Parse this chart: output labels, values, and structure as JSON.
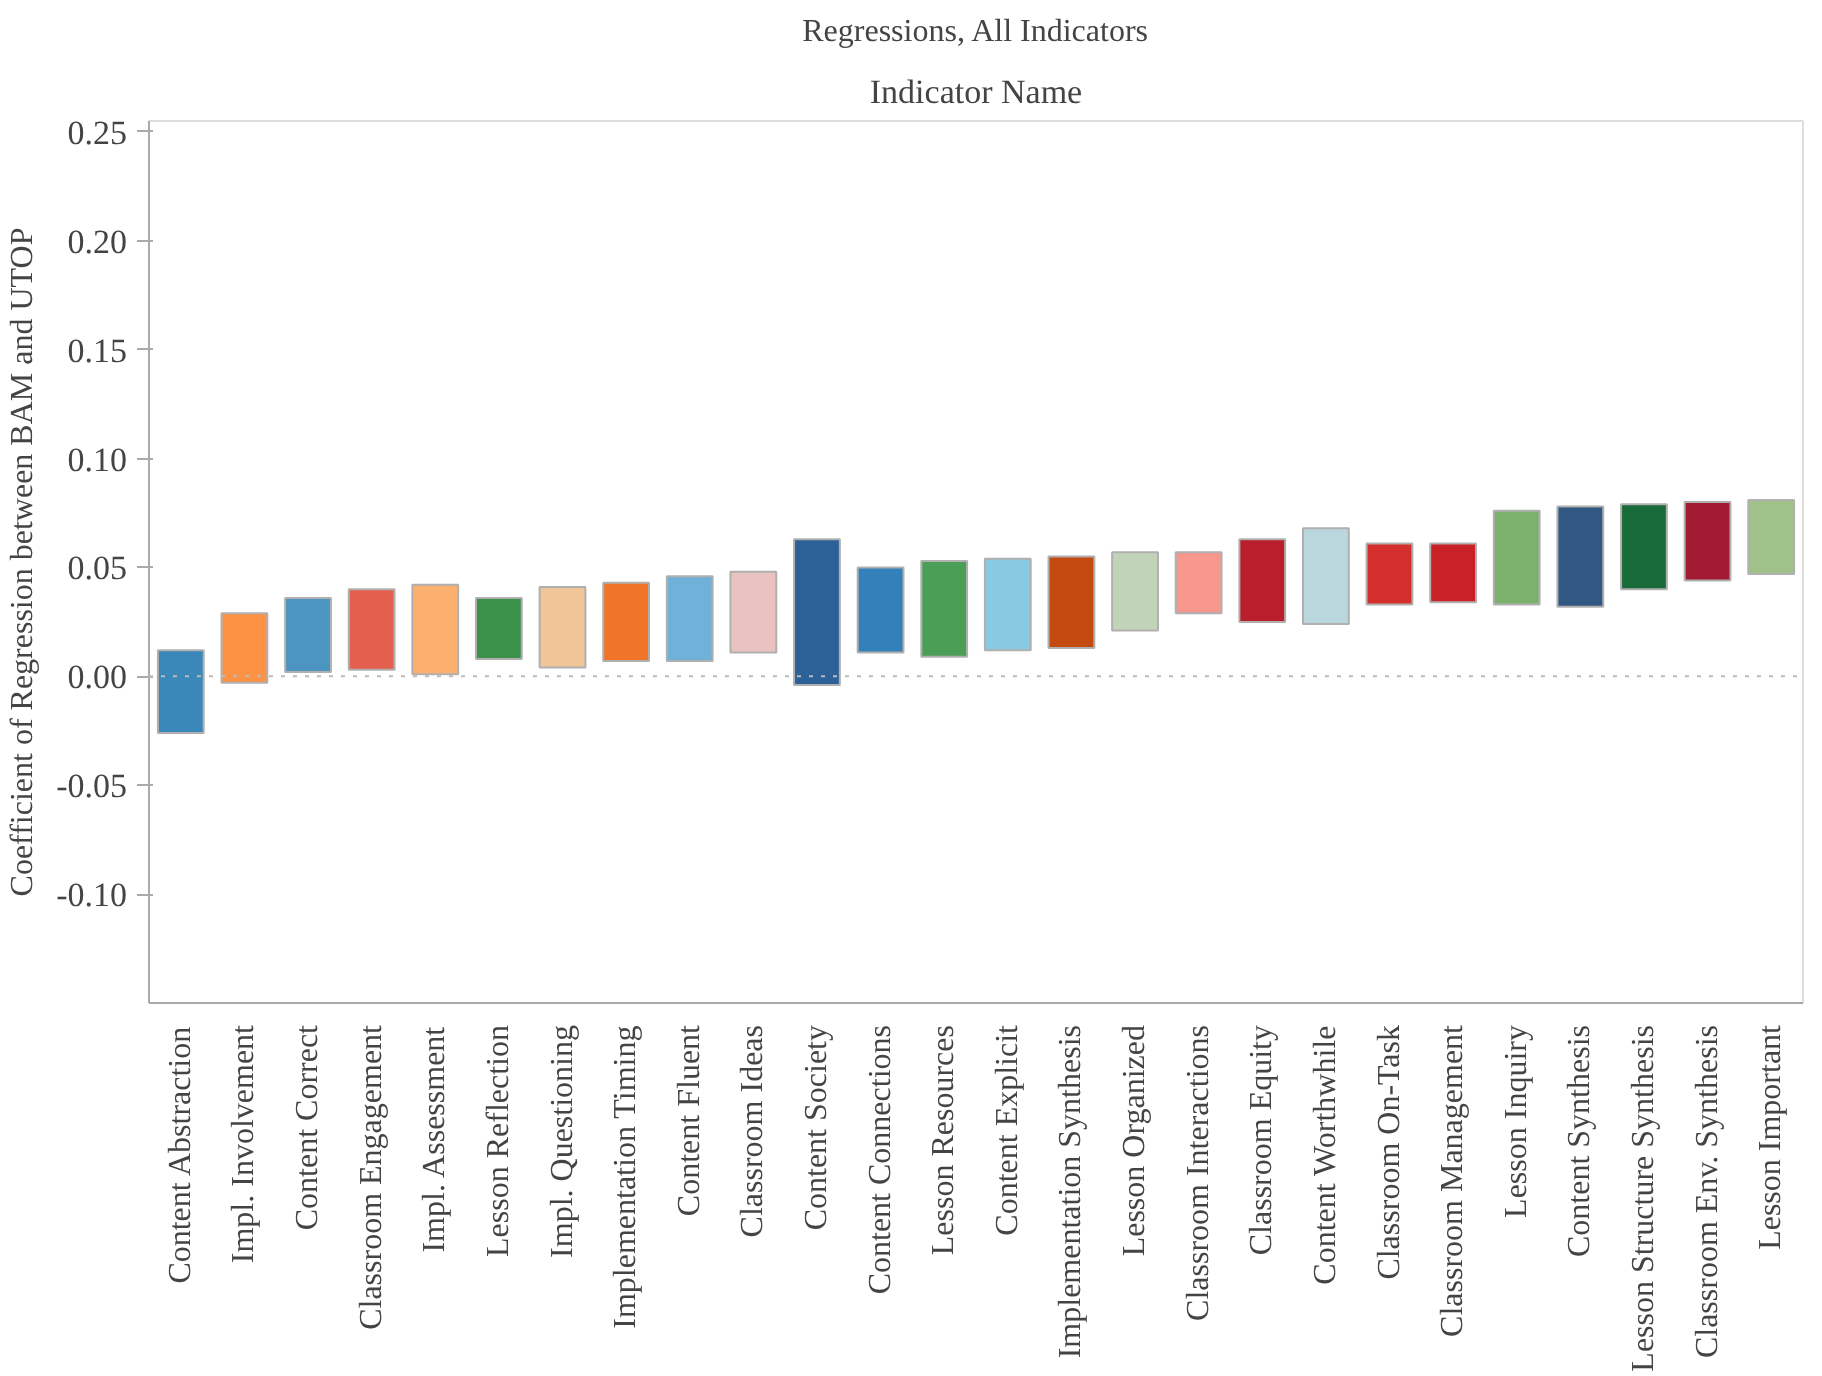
{
  "chart_data": {
    "type": "bar",
    "title": "Regressions, All Indicators",
    "subtitle": "Indicator Name",
    "ylabel": "Coefficient of Regression between BAM and UTOP",
    "categories": [
      "Content Abstraction",
      "Impl. Involvement",
      "Content Correct",
      "Classroom Engagement",
      "Impl. Assessment",
      "Lesson Reflection",
      "Impl. Questioning",
      "Implementation Timing",
      "Content Fluent",
      "Classroom Ideas",
      "Content Society",
      "Content Connections",
      "Lesson Resources",
      "Content Explicit",
      "Implementation Synthesis",
      "Lesson Organized",
      "Classroom Interactions",
      "Classroom Equity",
      "Content Worthwhile",
      "Classroom On-Task",
      "Classroom Management",
      "Lesson Inquiry",
      "Content Synthesis",
      "Lesson Structure Synthesis",
      "Classroom Env. Synthesis",
      "Lesson Important"
    ],
    "base": [
      -0.026,
      -0.003,
      0.002,
      0.003,
      0.001,
      0.008,
      0.004,
      0.007,
      0.007,
      0.011,
      -0.004,
      0.011,
      0.009,
      0.012,
      0.013,
      0.021,
      0.029,
      0.025,
      0.024,
      0.033,
      0.034,
      0.033,
      0.032,
      0.04,
      0.044,
      0.047
    ],
    "values": [
      0.038,
      0.032,
      0.034,
      0.037,
      0.041,
      0.028,
      0.037,
      0.036,
      0.039,
      0.037,
      0.067,
      0.039,
      0.044,
      0.042,
      0.042,
      0.036,
      0.028,
      0.038,
      0.044,
      0.028,
      0.027,
      0.043,
      0.046,
      0.039,
      0.036,
      0.034
    ],
    "colors": [
      "#3a87b9",
      "#fd9244",
      "#4d95c1",
      "#e4604e",
      "#fcb070",
      "#3a924a",
      "#f0c597",
      "#f07529",
      "#6fb1d8",
      "#eac3c1",
      "#2c6198",
      "#3380ba",
      "#4a9e55",
      "#88cae2",
      "#c54a11",
      "#c2d4b7",
      "#f7978e",
      "#b81f2b",
      "#bbd7de",
      "#d42f2d",
      "#c92126",
      "#7bb06d",
      "#305882",
      "#1a6b3a",
      "#a31a33",
      "#9ec289"
    ],
    "ylim": [
      -0.15,
      0.255
    ],
    "yticks": [
      {
        "value": 0.25,
        "label": "0.25"
      },
      {
        "value": 0.2,
        "label": "0.20"
      },
      {
        "value": 0.15,
        "label": "0.15"
      },
      {
        "value": 0.1,
        "label": "0.10"
      },
      {
        "value": 0.05,
        "label": "0.05"
      },
      {
        "value": 0,
        "label": "0.00"
      },
      {
        "value": -0.05,
        "label": "-0.05"
      },
      {
        "value": -0.1,
        "label": "-0.10"
      }
    ],
    "ref_lines": [
      {
        "axis": "y",
        "value": 0,
        "color": "#bbbbbb",
        "line_style": "dotted"
      }
    ],
    "grid": false
  }
}
